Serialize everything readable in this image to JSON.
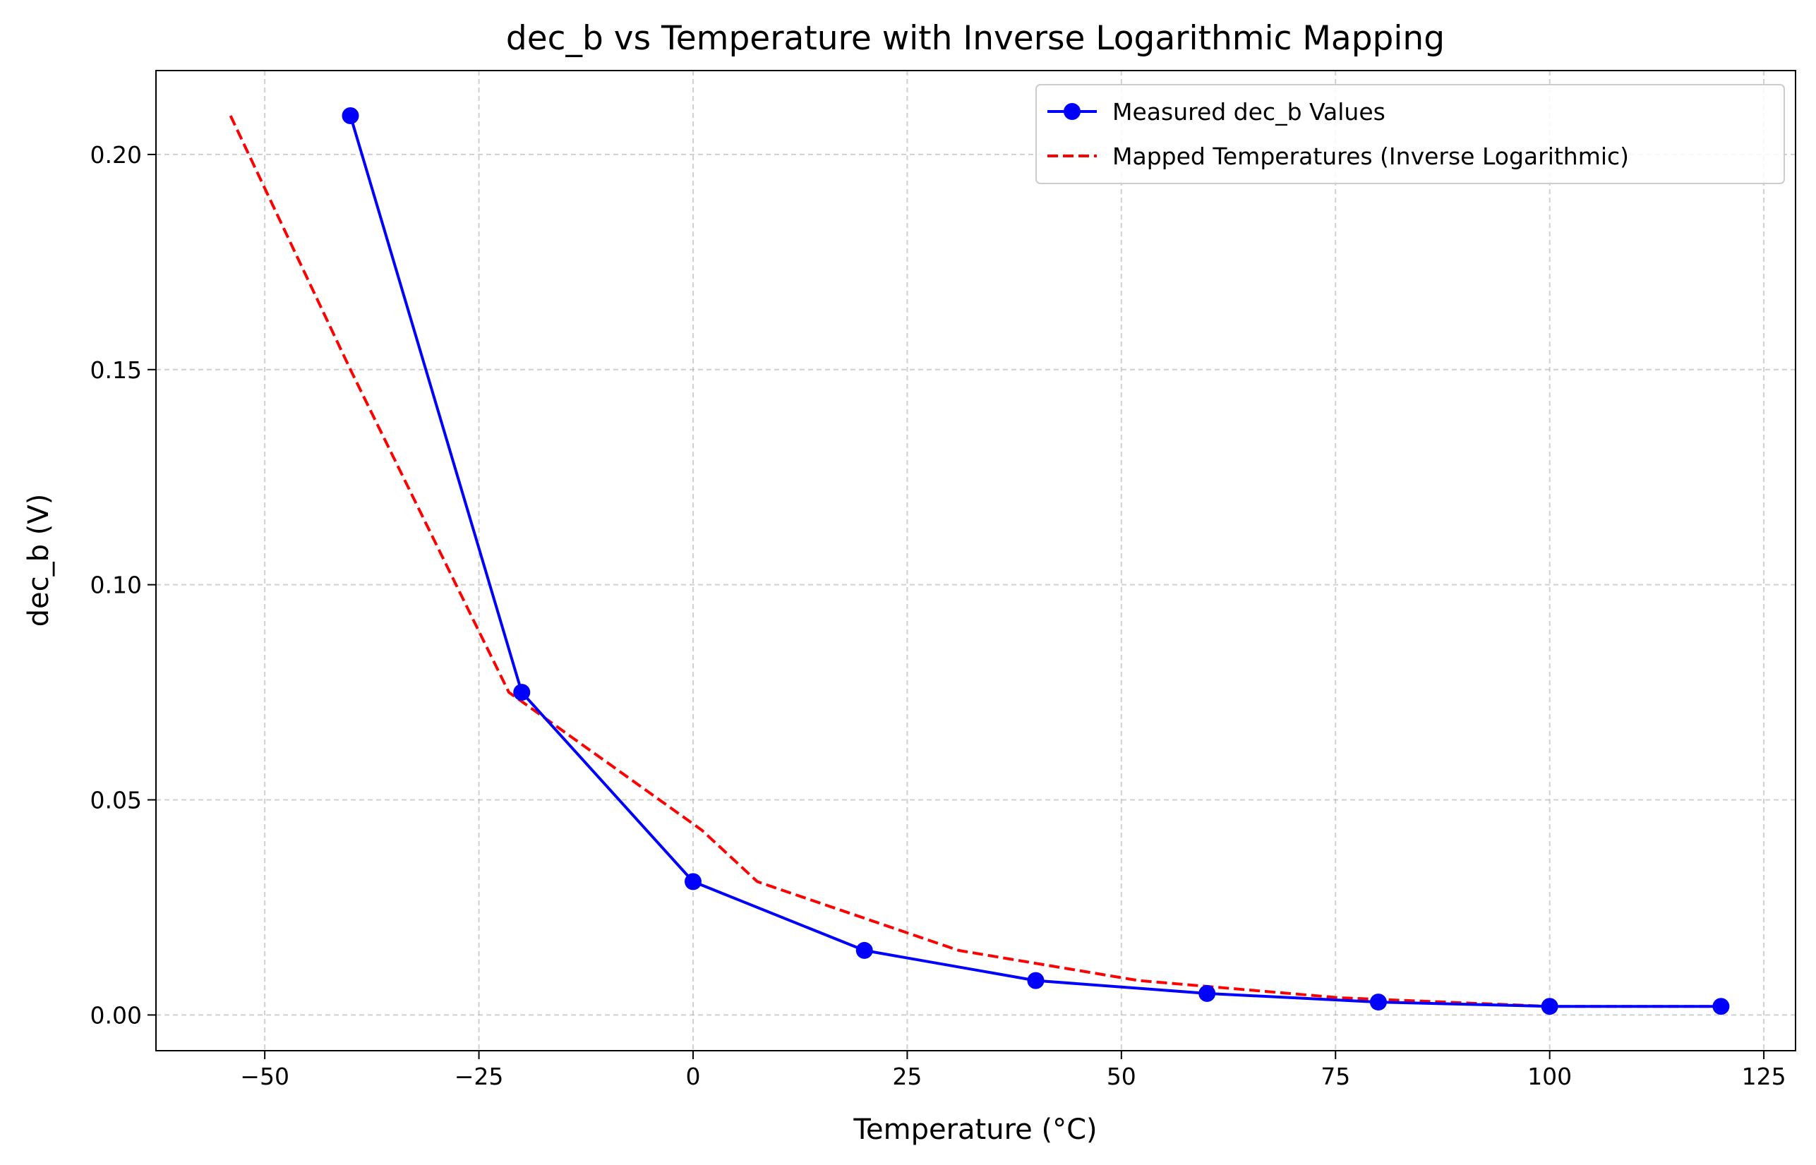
{
  "chart_data": {
    "type": "line",
    "title": "dec_b vs Temperature with Inverse Logarithmic Mapping",
    "xlabel": "Temperature (°C)",
    "ylabel": "dec_b (V)",
    "xlim": [
      -62.7,
      128.7
    ],
    "ylim": [
      -0.0083,
      0.2195
    ],
    "xticks": [
      -50,
      -25,
      0,
      25,
      50,
      75,
      100,
      125
    ],
    "xtick_labels": [
      "−50",
      "−25",
      "0",
      "25",
      "50",
      "75",
      "100",
      "125"
    ],
    "yticks": [
      0.0,
      0.05,
      0.1,
      0.15,
      0.2
    ],
    "ytick_labels": [
      "0.00",
      "0.05",
      "0.10",
      "0.15",
      "0.20"
    ],
    "grid": true,
    "legend_position": "upper-right",
    "series": [
      {
        "name": "Measured dec_b Values",
        "color": "#0000ff",
        "style": "solid",
        "marker": "circle",
        "x": [
          -40,
          -20,
          0,
          20,
          40,
          60,
          80,
          100,
          120
        ],
        "y": [
          0.209,
          0.075,
          0.031,
          0.015,
          0.008,
          0.005,
          0.003,
          0.002,
          0.002
        ]
      },
      {
        "name": "Mapped Temperatures (Inverse Logarithmic)",
        "color": "#ff0000",
        "style": "dashed",
        "marker": "none",
        "x": [
          -54,
          -40,
          -21.5,
          1,
          7.5,
          31,
          52,
          75.5,
          100,
          120
        ],
        "y": [
          0.209,
          0.15,
          0.075,
          0.043,
          0.031,
          0.015,
          0.008,
          0.004,
          0.002,
          0.002
        ]
      }
    ]
  }
}
